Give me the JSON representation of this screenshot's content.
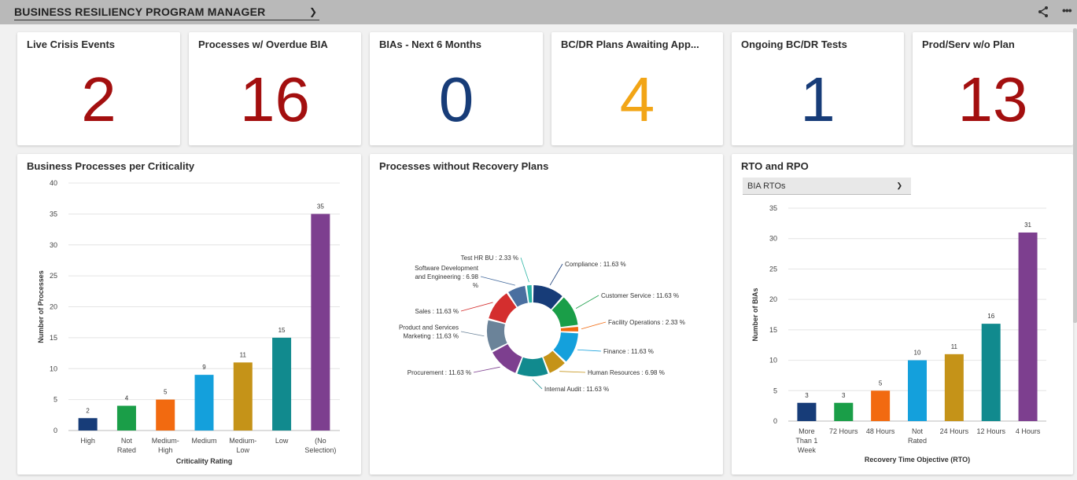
{
  "header": {
    "dashboard_title": "BUSINESS RESILIENCY PROGRAM MANAGER",
    "share_icon": "share-icon",
    "more_label": "•••"
  },
  "kpis": [
    {
      "title": "Live Crisis Events",
      "value": "2",
      "color": "#a30f0f"
    },
    {
      "title": "Processes w/ Overdue BIA",
      "value": "16",
      "color": "#a30f0f"
    },
    {
      "title": "BIAs - Next 6 Months",
      "value": "0",
      "color": "#173c78"
    },
    {
      "title": "BC/DR Plans Awaiting App...",
      "value": "4",
      "color": "#f2a516"
    },
    {
      "title": "Ongoing BC/DR Tests",
      "value": "1",
      "color": "#173c78"
    },
    {
      "title": "Prod/Serv w/o Plan",
      "value": "13",
      "color": "#a30f0f"
    }
  ],
  "criticality": {
    "title": "Business Processes per Criticality",
    "chart_data": {
      "type": "bar",
      "categories": [
        "High",
        "Not Rated",
        "Medium-High",
        "Medium",
        "Medium-Low",
        "Low",
        "(No Selection)"
      ],
      "category_lines": [
        [
          "High"
        ],
        [
          "Not",
          "Rated"
        ],
        [
          "Medium-",
          "High"
        ],
        [
          "Medium"
        ],
        [
          "Medium-",
          "Low"
        ],
        [
          "Low"
        ],
        [
          "(No",
          "Selection)"
        ]
      ],
      "values": [
        2,
        4,
        5,
        9,
        11,
        15,
        35
      ],
      "colors": [
        "#173c78",
        "#1a9e48",
        "#f26a10",
        "#14a0dc",
        "#c59318",
        "#118a8e",
        "#7d3f8f"
      ],
      "xlabel": "Criticality Rating",
      "ylabel": "Number of Processes",
      "ylim": [
        0,
        40
      ],
      "yticks": [
        0,
        5,
        10,
        15,
        20,
        25,
        30,
        35,
        40
      ],
      "grid": true
    }
  },
  "recovery": {
    "title": "Processes without Recovery Plans",
    "chart_data": {
      "type": "pie",
      "categories": [
        "Compliance",
        "Customer Service",
        "Facility Operations",
        "Finance",
        "Human Resources",
        "Internal Audit",
        "Procurement",
        "Product and Services Marketing",
        "Sales",
        "Software Development and Engineering",
        "Test HR BU"
      ],
      "values": [
        11.63,
        11.63,
        2.33,
        11.63,
        6.98,
        11.63,
        11.63,
        11.63,
        11.63,
        6.98,
        2.33
      ],
      "labels": [
        [
          "Compliance : 11.63 %"
        ],
        [
          "Customer Service : 11.63 %"
        ],
        [
          "Facility Operations : 2.33 %"
        ],
        [
          "Finance : 11.63 %"
        ],
        [
          "Human Resources : 6.98 %"
        ],
        [
          "Internal Audit : 11.63 %"
        ],
        [
          "Procurement : 11.63 %"
        ],
        [
          "Product and Services",
          "Marketing : 11.63 %"
        ],
        [
          "Sales : 11.63 %"
        ],
        [
          "Software Development",
          "and Engineering : 6.98",
          "%"
        ],
        [
          "Test HR BU : 2.33 %"
        ]
      ],
      "colors": [
        "#173c78",
        "#1a9e48",
        "#f26a10",
        "#14a0dc",
        "#c59318",
        "#118a8e",
        "#7d3f8f",
        "#6b8399",
        "#d42e2e",
        "#4a6fa0",
        "#2bb5a5"
      ]
    }
  },
  "rto": {
    "title": "RTO and RPO",
    "select_value": "BIA RTOs",
    "chart_data": {
      "type": "bar",
      "categories": [
        "More Than 1 Week",
        "72 Hours",
        "48 Hours",
        "Not Rated",
        "24 Hours",
        "12 Hours",
        "4 Hours"
      ],
      "category_lines": [
        [
          "More",
          "Than 1",
          "Week"
        ],
        [
          "72 Hours"
        ],
        [
          "48 Hours"
        ],
        [
          "Not",
          "Rated"
        ],
        [
          "24 Hours"
        ],
        [
          "12 Hours"
        ],
        [
          "4 Hours"
        ]
      ],
      "values": [
        3,
        3,
        5,
        10,
        11,
        16,
        31
      ],
      "colors": [
        "#173c78",
        "#1a9e48",
        "#f26a10",
        "#14a0dc",
        "#c59318",
        "#118a8e",
        "#7d3f8f"
      ],
      "xlabel": "Recovery Time Objective (RTO)",
      "ylabel": "Number of BIAs",
      "ylim": [
        0,
        35
      ],
      "yticks": [
        0,
        5,
        10,
        15,
        20,
        25,
        30,
        35
      ],
      "grid": true
    }
  }
}
